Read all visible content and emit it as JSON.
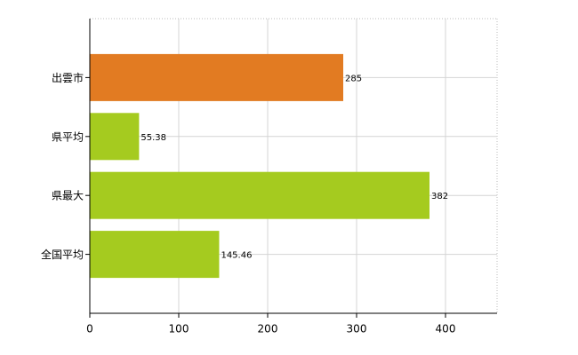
{
  "chart_data": {
    "type": "barh",
    "categories": [
      "出雲市",
      "県平均",
      "県最大",
      "全国平均"
    ],
    "values": [
      285,
      55.38,
      382,
      145.46
    ],
    "colors": [
      "#e27b22",
      "#a5cb1f",
      "#a5cb1f",
      "#a5cb1f"
    ],
    "xlim": [
      0,
      458
    ],
    "xticks": [
      0,
      100,
      200,
      300,
      400
    ],
    "grid": true
  }
}
